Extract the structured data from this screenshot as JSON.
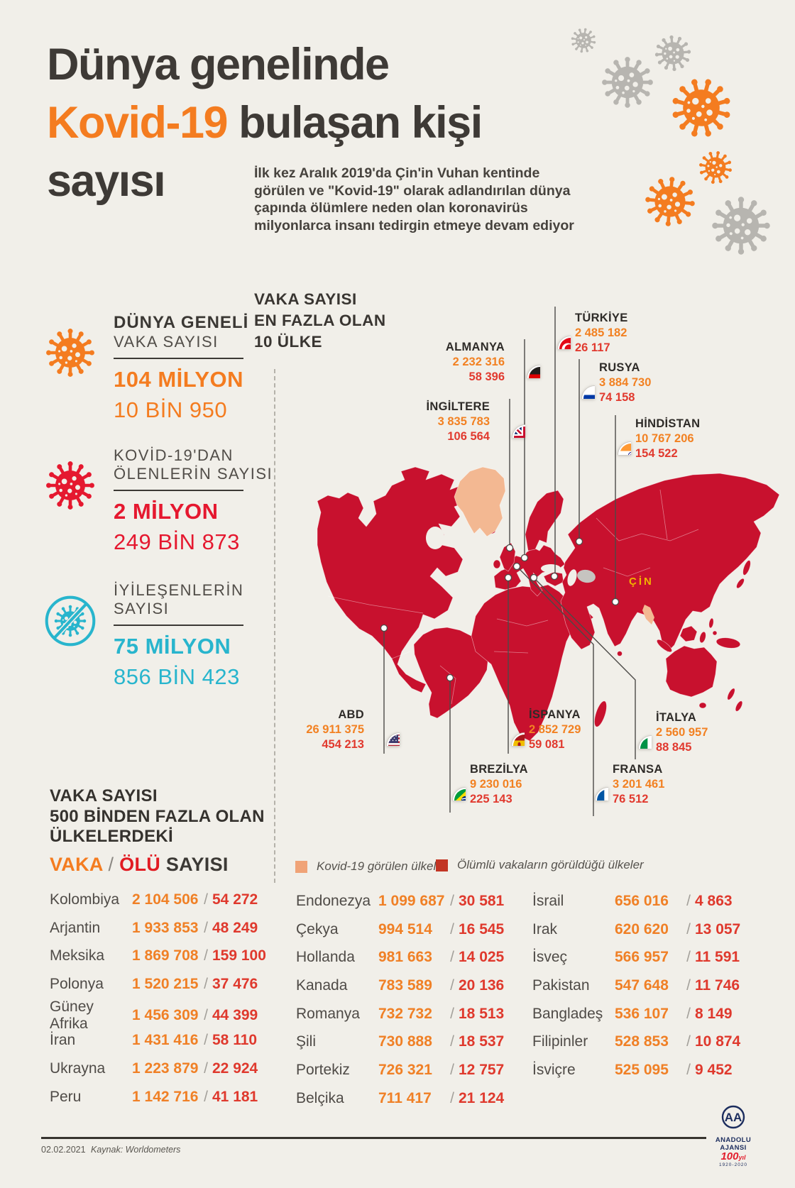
{
  "title": {
    "line1": "Dünya genelinde",
    "line2_orange": "Kovid-19",
    "line2_rest": " bulaşan kişi",
    "line3": "sayısı"
  },
  "intro": "İlk kez Aralık 2019'da Çin'in Vuhan kentinde görülen ve \"Kovid-19\" olarak adlandırılan dünya çapında ölümlere neden olan koronavirüs milyonlarca insanı tedirgin etmeye devam ediyor",
  "stats": [
    {
      "icon": "virus-icon",
      "color": "#f47c20",
      "title_line1": "DÜNYA GENELİ",
      "title_line2": "VAKA SAYISI",
      "value_bold": "104 MİLYON",
      "value_rest": "10 BİN 950"
    },
    {
      "icon": "virus-icon",
      "color": "#e5182f",
      "title_line1": "KOVİD-19'DAN",
      "title_line2": "ÖLENLERİN SAYISI",
      "value_bold": "2 MİLYON",
      "value_rest": "249 BİN 873"
    },
    {
      "icon": "no-virus-icon",
      "color": "#28b5cd",
      "title_line1": "İYİLEŞENLERİN",
      "title_line2": "SAYISI",
      "value_bold": "75 MİLYON",
      "value_rest": "856 BİN 423"
    }
  ],
  "map": {
    "header_lines": [
      "VAKA SAYISI",
      "EN FAZLA OLAN",
      "10 ÜLKE"
    ],
    "china_label": "ÇİN",
    "china_label_color": "#f0b400",
    "land_color": "#c8112e",
    "no_death_color": "#f3b892",
    "countries": [
      {
        "name": "TÜRKİYE",
        "cases": "2 485 182",
        "deaths": "26 117",
        "flag": "flag-turkey-icon"
      },
      {
        "name": "ALMANYA",
        "cases": "2 232 316",
        "deaths": "58 396",
        "flag": "flag-germany-icon"
      },
      {
        "name": "RUSYA",
        "cases": "3 884 730",
        "deaths": "74 158",
        "flag": "flag-russia-icon"
      },
      {
        "name": "İNGİLTERE",
        "cases": "3 835 783",
        "deaths": "106 564",
        "flag": "flag-uk-icon"
      },
      {
        "name": "HİNDİSTAN",
        "cases": "10 767 206",
        "deaths": "154 522",
        "flag": "flag-india-icon"
      },
      {
        "name": "ABD",
        "cases": "26 911 375",
        "deaths": "454 213",
        "flag": "flag-usa-icon"
      },
      {
        "name": "İSPANYA",
        "cases": "2 852 729",
        "deaths": "59 081",
        "flag": "flag-spain-icon"
      },
      {
        "name": "İTALYA",
        "cases": "2 560 957",
        "deaths": "88 845",
        "flag": "flag-italy-icon"
      },
      {
        "name": "BREZİLYA",
        "cases": "9 230 016",
        "deaths": "225 143",
        "flag": "flag-brazil-icon"
      },
      {
        "name": "FRANSA",
        "cases": "3 201 461",
        "deaths": "76 512",
        "flag": "flag-france-icon"
      }
    ],
    "legend": [
      {
        "label": "Kovid-19 görülen ülkeler",
        "color": "#f0a377"
      },
      {
        "label": "Ölümlü vakaların görüldüğü ülkeler",
        "color": "#c23524"
      }
    ]
  },
  "table": {
    "header_lines": [
      "VAKA SAYISI",
      "500 BİNDEN FAZLA OLAN",
      "ÜLKELERDEKİ"
    ],
    "subheader": {
      "vaka": "VAKA",
      "slash": "/",
      "olu": "ÖLÜ",
      "sayisi": "SAYISI"
    },
    "columns": [
      [
        {
          "country": "Kolombiya",
          "cases": "2 104 506",
          "deaths": "54 272"
        },
        {
          "country": "Arjantin",
          "cases": "1 933 853",
          "deaths": "48 249"
        },
        {
          "country": "Meksika",
          "cases": "1 869 708",
          "deaths": "159 100"
        },
        {
          "country": "Polonya",
          "cases": "1 520 215",
          "deaths": "37 476"
        },
        {
          "country": "Güney Afrika",
          "cases": "1 456 309",
          "deaths": "44 399"
        },
        {
          "country": "İran",
          "cases": "1 431 416",
          "deaths": "58 110"
        },
        {
          "country": "Ukrayna",
          "cases": "1 223 879",
          "deaths": "22 924"
        },
        {
          "country": "Peru",
          "cases": "1 142 716",
          "deaths": "41 181"
        }
      ],
      [
        {
          "country": "Endonezya",
          "cases": "1 099 687",
          "deaths": "30 581"
        },
        {
          "country": "Çekya",
          "cases": "994 514",
          "deaths": "16 545"
        },
        {
          "country": "Hollanda",
          "cases": "981 663",
          "deaths": "14 025"
        },
        {
          "country": "Kanada",
          "cases": "783 589",
          "deaths": "20 136"
        },
        {
          "country": "Romanya",
          "cases": "732 732",
          "deaths": "18 513"
        },
        {
          "country": "Şili",
          "cases": "730 888",
          "deaths": "18 537"
        },
        {
          "country": "Portekiz",
          "cases": "726 321",
          "deaths": "12 757"
        },
        {
          "country": "Belçika",
          "cases": "711 417",
          "deaths": "21 124"
        }
      ],
      [
        {
          "country": "İsrail",
          "cases": "656 016",
          "deaths": "4 863"
        },
        {
          "country": "Irak",
          "cases": "620 620",
          "deaths": "13 057"
        },
        {
          "country": "İsveç",
          "cases": "566 957",
          "deaths": "11 591"
        },
        {
          "country": "Pakistan",
          "cases": "547 648",
          "deaths": "11 746"
        },
        {
          "country": "Bangladeş",
          "cases": "536 107",
          "deaths": "8 149"
        },
        {
          "country": "Filipinler",
          "cases": "528 853",
          "deaths": "10 874"
        },
        {
          "country": "İsviçre",
          "cases": "525 095",
          "deaths": "9 452"
        }
      ]
    ]
  },
  "decor_viruses": [
    {
      "icon": "virus-icon",
      "color": "#b7b5b0"
    },
    {
      "icon": "virus-icon",
      "color": "#b7b5b0"
    },
    {
      "icon": "virus-icon",
      "color": "#b7b5b0"
    },
    {
      "icon": "virus-icon",
      "color": "#f47c20"
    },
    {
      "icon": "virus-icon",
      "color": "#f47c20"
    },
    {
      "icon": "virus-icon",
      "color": "#f47c20"
    },
    {
      "icon": "virus-icon",
      "color": "#b7b5b0"
    }
  ],
  "footer": {
    "date": "02.02.2021",
    "source": "Kaynak: Worldometers",
    "agency": "ANADOLU AJANSI",
    "aa": "AA",
    "centennial": "100",
    "centennial_suffix": "yıl",
    "years": "1920-2020"
  },
  "chart_data": {
    "type": "table",
    "title": "Dünya genelinde Kovid-19 bulaşan kişi sayısı",
    "totals": {
      "cases": 104010950,
      "deaths": 2249873,
      "recovered": 75856423
    },
    "top10_countries": [
      {
        "name": "ABD",
        "cases": 26911375,
        "deaths": 454213
      },
      {
        "name": "HİNDİSTAN",
        "cases": 10767206,
        "deaths": 154522
      },
      {
        "name": "BREZİLYA",
        "cases": 9230016,
        "deaths": 225143
      },
      {
        "name": "RUSYA",
        "cases": 3884730,
        "deaths": 74158
      },
      {
        "name": "İNGİLTERE",
        "cases": 3835783,
        "deaths": 106564
      },
      {
        "name": "FRANSA",
        "cases": 3201461,
        "deaths": 76512
      },
      {
        "name": "İSPANYA",
        "cases": 2852729,
        "deaths": 59081
      },
      {
        "name": "İTALYA",
        "cases": 2560957,
        "deaths": 88845
      },
      {
        "name": "TÜRKİYE",
        "cases": 2485182,
        "deaths": 26117
      },
      {
        "name": "ALMANYA",
        "cases": 2232316,
        "deaths": 58396
      }
    ],
    "over_500k_countries": [
      {
        "name": "Kolombiya",
        "cases": 2104506,
        "deaths": 54272
      },
      {
        "name": "Arjantin",
        "cases": 1933853,
        "deaths": 48249
      },
      {
        "name": "Meksika",
        "cases": 1869708,
        "deaths": 159100
      },
      {
        "name": "Polonya",
        "cases": 1520215,
        "deaths": 37476
      },
      {
        "name": "Güney Afrika",
        "cases": 1456309,
        "deaths": 44399
      },
      {
        "name": "İran",
        "cases": 1431416,
        "deaths": 58110
      },
      {
        "name": "Ukrayna",
        "cases": 1223879,
        "deaths": 22924
      },
      {
        "name": "Peru",
        "cases": 1142716,
        "deaths": 41181
      },
      {
        "name": "Endonezya",
        "cases": 1099687,
        "deaths": 30581
      },
      {
        "name": "Çekya",
        "cases": 994514,
        "deaths": 16545
      },
      {
        "name": "Hollanda",
        "cases": 981663,
        "deaths": 14025
      },
      {
        "name": "Kanada",
        "cases": 783589,
        "deaths": 20136
      },
      {
        "name": "Romanya",
        "cases": 732732,
        "deaths": 18513
      },
      {
        "name": "Şili",
        "cases": 730888,
        "deaths": 18537
      },
      {
        "name": "Portekiz",
        "cases": 726321,
        "deaths": 12757
      },
      {
        "name": "Belçika",
        "cases": 711417,
        "deaths": 21124
      },
      {
        "name": "İsrail",
        "cases": 656016,
        "deaths": 4863
      },
      {
        "name": "Irak",
        "cases": 620620,
        "deaths": 13057
      },
      {
        "name": "İsveç",
        "cases": 566957,
        "deaths": 11591
      },
      {
        "name": "Pakistan",
        "cases": 547648,
        "deaths": 11746
      },
      {
        "name": "Bangladeş",
        "cases": 536107,
        "deaths": 8149
      },
      {
        "name": "Filipinler",
        "cases": 528853,
        "deaths": 10874
      },
      {
        "name": "İsviçre",
        "cases": 525095,
        "deaths": 9452
      }
    ]
  }
}
